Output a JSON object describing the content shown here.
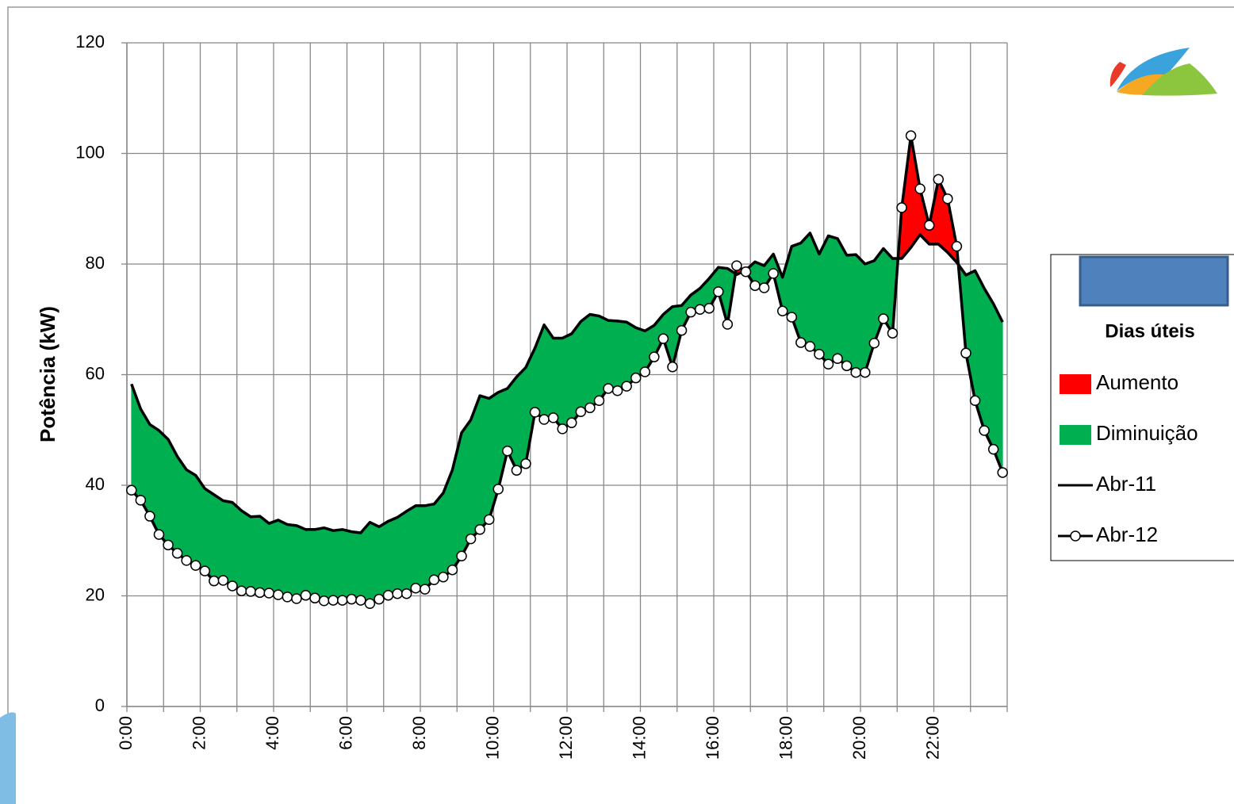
{
  "chart_data": {
    "type": "line",
    "y_axis_label": "Potência (kW)",
    "categories": [
      "0:00",
      null,
      null,
      null,
      null,
      null,
      null,
      null,
      "2:00",
      null,
      null,
      null,
      null,
      null,
      null,
      null,
      "4:00",
      null,
      null,
      null,
      null,
      null,
      null,
      null,
      "6:00",
      null,
      null,
      null,
      null,
      null,
      null,
      null,
      "8:00",
      null,
      null,
      null,
      null,
      null,
      null,
      null,
      "10:00",
      null,
      null,
      null,
      null,
      null,
      null,
      null,
      "12:00",
      null,
      null,
      null,
      null,
      null,
      null,
      null,
      "14:00",
      null,
      null,
      null,
      null,
      null,
      null,
      null,
      "16:00",
      null,
      null,
      null,
      null,
      null,
      null,
      null,
      "18:00",
      null,
      null,
      null,
      null,
      null,
      null,
      null,
      "20:00",
      null,
      null,
      null,
      null,
      null,
      null,
      null,
      "22:00",
      null,
      null,
      null,
      null,
      null,
      null,
      null
    ],
    "series": [
      {
        "name": "Abr-11",
        "color": "#000000",
        "marker": false,
        "values": [
          58.3,
          53.8,
          51.0,
          49.9,
          48.3,
          45.2,
          42.8,
          41.8,
          39.4,
          38.3,
          37.2,
          36.9,
          35.4,
          34.3,
          34.4,
          33.1,
          33.7,
          32.9,
          32.7,
          32.0,
          32.0,
          32.3,
          31.8,
          32.0,
          31.6,
          31.4,
          33.3,
          32.5,
          33.5,
          34.2,
          35.3,
          36.3,
          36.3,
          36.6,
          38.6,
          42.8,
          49.5,
          51.8,
          56.2,
          55.7,
          56.8,
          57.5,
          59.6,
          61.3,
          64.8,
          69.0,
          66.6,
          66.6,
          67.4,
          69.6,
          70.9,
          70.6,
          69.8,
          69.7,
          69.5,
          68.5,
          67.9,
          68.9,
          70.9,
          72.3,
          72.5,
          74.4,
          75.6,
          77.4,
          79.4,
          79.2,
          78.1,
          78.9,
          80.4,
          79.7,
          81.8,
          77.6,
          83.2,
          83.8,
          85.6,
          81.8,
          85.1,
          84.6,
          81.6,
          81.7,
          80.0,
          80.6,
          82.8,
          81.0,
          81.0,
          83.0,
          85.3,
          83.6,
          83.6,
          82.1,
          80.3,
          78.0,
          78.8,
          75.6,
          72.8,
          69.5
        ]
      },
      {
        "name": "Abr-12",
        "color": "#000000",
        "marker": true,
        "values": [
          39.1,
          37.3,
          34.4,
          31.1,
          29.2,
          27.7,
          26.4,
          25.5,
          24.5,
          22.7,
          22.8,
          21.8,
          20.9,
          20.8,
          20.6,
          20.5,
          20.2,
          19.8,
          19.5,
          20.1,
          19.6,
          19.1,
          19.2,
          19.2,
          19.4,
          19.2,
          18.6,
          19.4,
          20.1,
          20.4,
          20.4,
          21.4,
          21.2,
          22.9,
          23.4,
          24.7,
          27.2,
          30.3,
          32.0,
          33.8,
          39.3,
          46.2,
          42.7,
          43.9,
          53.2,
          51.9,
          52.2,
          50.2,
          51.3,
          53.3,
          54.0,
          55.3,
          57.5,
          57.1,
          57.9,
          59.4,
          60.5,
          63.2,
          66.5,
          61.4,
          68.0,
          71.3,
          71.8,
          72.0,
          75.0,
          69.1,
          79.7,
          78.6,
          76.1,
          75.7,
          78.3,
          71.5,
          70.4,
          65.8,
          65.1,
          63.7,
          61.9,
          62.9,
          61.6,
          60.4,
          60.4,
          65.7,
          70.1,
          67.5,
          90.2,
          103.2,
          93.6,
          87.0,
          95.3,
          91.8,
          83.2,
          63.9,
          55.3,
          49.9,
          46.5,
          42.3
        ]
      }
    ],
    "areas": [
      {
        "name": "Aumento",
        "color": "#ff0000"
      },
      {
        "name": "Diminuição",
        "color": "#00b050"
      }
    ],
    "legend_title": "Dias úteis",
    "legend_position": "right",
    "ylim": [
      0,
      120
    ],
    "yticks": [
      0,
      20,
      40,
      60,
      80,
      100,
      120
    ],
    "grid": true
  }
}
